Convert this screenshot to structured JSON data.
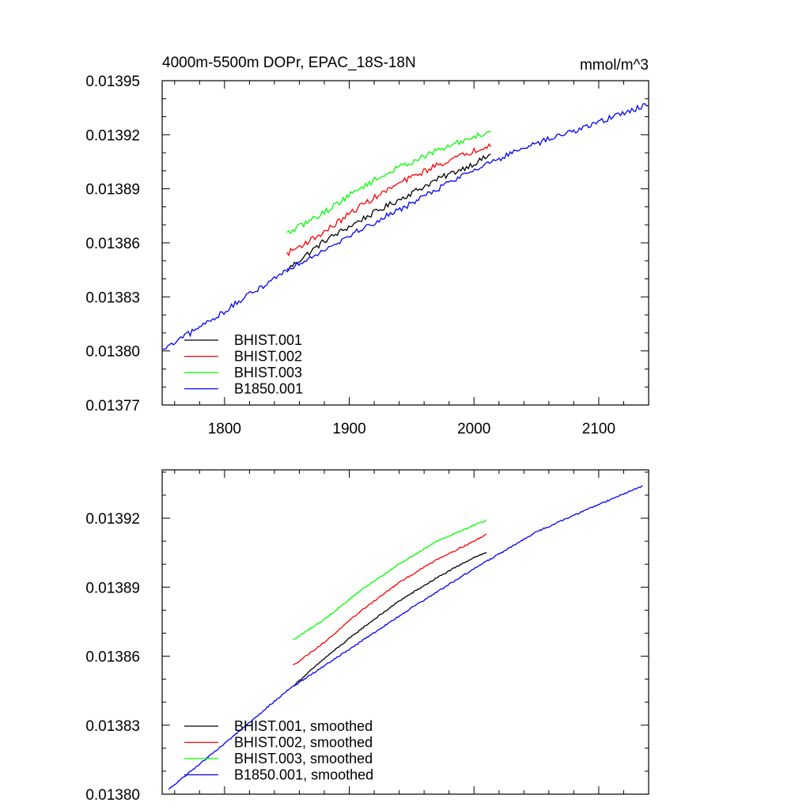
{
  "chart_data": [
    {
      "type": "line",
      "title": "4000m-5500m DOPr, EPAC_18S-18N",
      "units": "mmol/m^3",
      "xlim": [
        1750,
        2140
      ],
      "ylim": [
        0.01377,
        0.01395
      ],
      "xticks": [
        1800,
        1900,
        2000,
        2100
      ],
      "xtick_labels": [
        "1800",
        "1900",
        "2000",
        "2100"
      ],
      "yticks": [
        0.01377,
        0.0138,
        0.01383,
        0.01386,
        0.01389,
        0.01392,
        0.01395
      ],
      "ytick_labels": [
        "0.01377",
        "0.01380",
        "0.01383",
        "0.01386",
        "0.01389",
        "0.01392",
        "0.01395"
      ],
      "grid": false,
      "legend_position": "bottom-left",
      "series": [
        {
          "name": "BHIST.001",
          "color": "#000000",
          "x": [
            1850,
            1880,
            1910,
            1940,
            1970,
            2000,
            2014
          ],
          "y": [
            0.013845,
            0.013861,
            0.013873,
            0.013884,
            0.013895,
            0.013904,
            0.013909
          ]
        },
        {
          "name": "BHIST.002",
          "color": "#ff0000",
          "x": [
            1850,
            1880,
            1910,
            1940,
            1970,
            2000,
            2014
          ],
          "y": [
            0.013854,
            0.013866,
            0.013881,
            0.013893,
            0.013903,
            0.013911,
            0.013915
          ]
        },
        {
          "name": "BHIST.003",
          "color": "#00ff00",
          "x": [
            1850,
            1880,
            1910,
            1940,
            1970,
            2000,
            2014
          ],
          "y": [
            0.013865,
            0.013877,
            0.013891,
            0.013902,
            0.013911,
            0.013919,
            0.013922
          ]
        },
        {
          "name": "B1850.001",
          "color": "#0000ff",
          "x": [
            1750,
            1800,
            1850,
            1900,
            1950,
            2000,
            2050,
            2100,
            2140
          ],
          "y": [
            0.0138,
            0.013822,
            0.013845,
            0.013864,
            0.013882,
            0.013901,
            0.013915,
            0.013927,
            0.013937
          ]
        }
      ]
    },
    {
      "type": "line",
      "xlim": [
        1750,
        2140
      ],
      "ylim": [
        0.0138,
        0.013941
      ],
      "xticks": [
        1800,
        1900,
        2000,
        2100
      ],
      "yticks": [
        0.0138,
        0.01383,
        0.01386,
        0.01389,
        0.01392
      ],
      "ytick_labels": [
        "0.01380",
        "0.01383",
        "0.01386",
        "0.01389",
        "0.01392"
      ],
      "grid": false,
      "legend_position": "bottom-left",
      "series": [
        {
          "name": "BHIST.001, smoothed",
          "color": "#000000",
          "x": [
            1855,
            1880,
            1910,
            1940,
            1970,
            2000,
            2010
          ],
          "y": [
            0.013847,
            0.013859,
            0.013872,
            0.013884,
            0.013894,
            0.013903,
            0.013905
          ]
        },
        {
          "name": "BHIST.002, smoothed",
          "color": "#ff0000",
          "x": [
            1855,
            1880,
            1910,
            1940,
            1970,
            2000,
            2010
          ],
          "y": [
            0.013856,
            0.013866,
            0.01388,
            0.013892,
            0.013902,
            0.01391,
            0.013913
          ]
        },
        {
          "name": "BHIST.003, smoothed",
          "color": "#00ff00",
          "x": [
            1855,
            1880,
            1910,
            1940,
            1970,
            2000,
            2010
          ],
          "y": [
            0.013867,
            0.013876,
            0.013889,
            0.0139,
            0.01391,
            0.013917,
            0.013919
          ]
        },
        {
          "name": "B1850.001, smoothed",
          "color": "#0000ff",
          "x": [
            1755,
            1800,
            1850,
            1900,
            1950,
            2000,
            2050,
            2100,
            2135
          ],
          "y": [
            0.013802,
            0.013822,
            0.013845,
            0.013863,
            0.013881,
            0.013898,
            0.013914,
            0.013926,
            0.013934
          ]
        }
      ]
    }
  ]
}
